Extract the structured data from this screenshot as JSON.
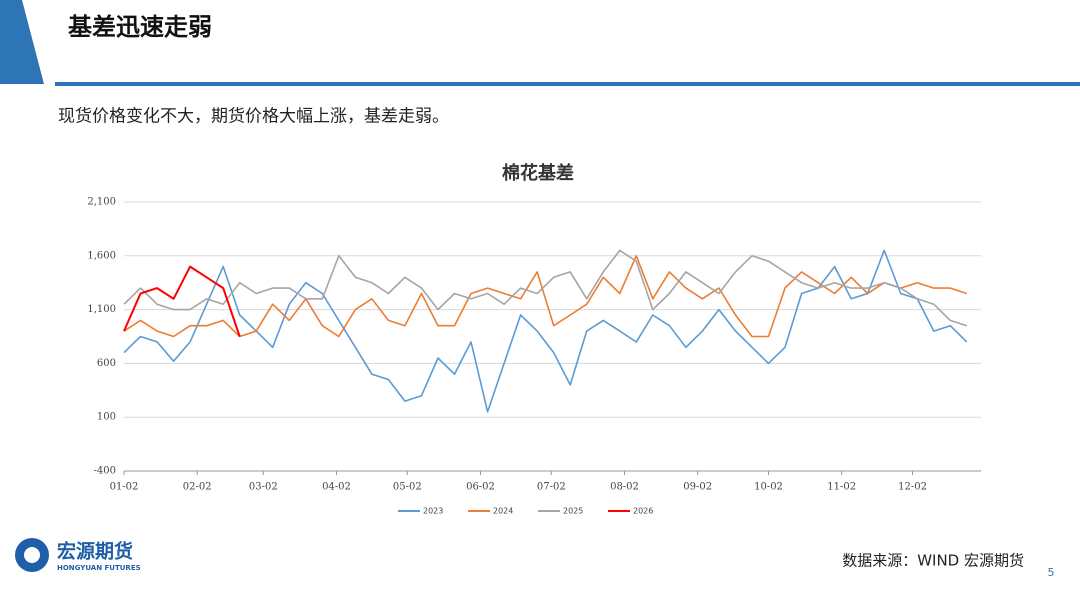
{
  "header": {
    "title": "基差迅速走弱"
  },
  "subtitle": "现货价格变化不大，期货价格大幅上涨，基差走弱。",
  "footer": {
    "logo_name": "宏源期货",
    "logo_en": "HONGYUAN FUTURES",
    "source": "数据来源：WIND   宏源期货",
    "page": "5"
  },
  "chart_data": {
    "type": "line",
    "title": "棉花基差",
    "x": [
      0,
      7,
      14,
      21,
      28,
      35,
      42,
      49,
      56,
      63,
      70,
      77,
      84,
      91,
      98,
      105,
      112,
      119,
      126,
      133,
      140,
      147,
      154,
      161,
      168,
      175,
      182,
      189,
      196,
      203,
      210,
      217,
      224,
      231,
      238,
      245,
      252,
      259,
      266,
      273,
      280,
      287,
      294,
      301,
      308,
      315,
      322,
      329,
      336,
      343,
      350,
      357
    ],
    "xlim": [
      0,
      363
    ],
    "xticks": [
      {
        "value": 0,
        "label": "01-02"
      },
      {
        "value": 31,
        "label": "02-02"
      },
      {
        "value": 59,
        "label": "03-02"
      },
      {
        "value": 90,
        "label": "04-02"
      },
      {
        "value": 120,
        "label": "05-02"
      },
      {
        "value": 151,
        "label": "06-02"
      },
      {
        "value": 181,
        "label": "07-02"
      },
      {
        "value": 212,
        "label": "08-02"
      },
      {
        "value": 243,
        "label": "09-02"
      },
      {
        "value": 273,
        "label": "10-02"
      },
      {
        "value": 304,
        "label": "11-02"
      },
      {
        "value": 334,
        "label": "12-02"
      }
    ],
    "ylim": [
      -400,
      2100
    ],
    "yticks": [
      -400,
      100,
      600,
      {
        "value": 1100,
        "label": "1,100"
      },
      {
        "value": 1600,
        "label": "1,600"
      },
      {
        "value": 2100,
        "label": "2,100"
      }
    ],
    "grid": true,
    "legend": "bottom",
    "series": [
      {
        "name": "2023",
        "color": "#5b9bd5",
        "values": [
          700,
          850,
          800,
          620,
          800,
          1150,
          1500,
          1050,
          900,
          750,
          1150,
          1350,
          1250,
          1000,
          750,
          500,
          450,
          250,
          300,
          650,
          500,
          800,
          150,
          600,
          1050,
          900,
          700,
          400,
          900,
          1000,
          900,
          800,
          1050,
          950,
          750,
          900,
          1100,
          900,
          750,
          600,
          750,
          1250,
          1300,
          1500,
          1200,
          1250,
          1650,
          1250,
          1200,
          900,
          950,
          800
        ]
      },
      {
        "name": "2024",
        "color": "#ed7d31",
        "values": [
          900,
          1000,
          900,
          850,
          950,
          950,
          1000,
          850,
          900,
          1150,
          1000,
          1200,
          950,
          850,
          1100,
          1200,
          1000,
          950,
          1250,
          950,
          950,
          1250,
          1300,
          1250,
          1200,
          1450,
          950,
          1050,
          1150,
          1400,
          1250,
          1600,
          1200,
          1450,
          1300,
          1200,
          1300,
          1050,
          850,
          850,
          1300,
          1450,
          1350,
          1250,
          1400,
          1250,
          1350,
          1300,
          1350,
          1300,
          1300,
          1250
        ]
      },
      {
        "name": "2025",
        "color": "#a5a5a5",
        "values": [
          1150,
          1300,
          1150,
          1100,
          1100,
          1200,
          1150,
          1350,
          1250,
          1300,
          1300,
          1200,
          1200,
          1600,
          1400,
          1350,
          1250,
          1400,
          1300,
          1100,
          1250,
          1200,
          1250,
          1150,
          1300,
          1250,
          1400,
          1450,
          1200,
          1450,
          1650,
          1550,
          1100,
          1250,
          1450,
          1350,
          1250,
          1450,
          1600,
          1550,
          1450,
          1350,
          1300,
          1350,
          1300,
          1300,
          1350,
          1300,
          1200,
          1150,
          1000,
          950
        ]
      },
      {
        "name": "2026",
        "color": "#ff0000",
        "values": [
          900,
          1250,
          1300,
          1200,
          1500,
          1400,
          1300,
          850,
          null,
          null,
          null,
          null,
          null,
          null,
          null,
          null,
          null,
          null,
          null,
          null,
          null,
          null,
          null,
          null,
          null,
          null,
          null,
          null,
          null,
          null,
          null,
          null,
          null,
          null,
          null,
          null,
          null,
          null,
          null,
          null,
          null,
          null,
          null,
          null,
          null,
          null,
          null,
          null,
          null,
          null,
          null,
          null
        ]
      }
    ]
  }
}
